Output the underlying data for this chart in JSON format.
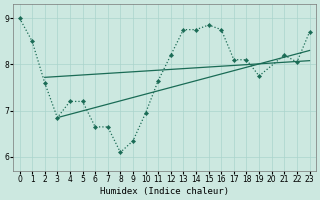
{
  "bg_color": "#cce8e0",
  "grid_color": "#aad4cc",
  "line_color": "#1a6b55",
  "xlabel": "Humidex (Indice chaleur)",
  "ylim": [
    5.7,
    9.3
  ],
  "xlim": [
    -0.5,
    23.5
  ],
  "yticks": [
    6,
    7,
    8,
    9
  ],
  "xticks": [
    0,
    1,
    2,
    3,
    4,
    5,
    6,
    7,
    8,
    9,
    10,
    11,
    12,
    13,
    14,
    15,
    16,
    17,
    18,
    19,
    20,
    21,
    22,
    23
  ],
  "main_x": [
    0,
    1,
    2,
    3,
    4,
    5,
    6,
    7,
    8,
    9,
    10,
    11,
    12,
    13,
    14,
    15,
    16,
    17,
    18,
    19,
    21,
    22,
    23
  ],
  "main_y": [
    9.0,
    8.5,
    7.6,
    6.85,
    7.2,
    7.2,
    6.65,
    6.65,
    6.1,
    6.35,
    6.95,
    7.65,
    8.2,
    8.75,
    8.75,
    8.85,
    8.75,
    8.1,
    8.1,
    7.75,
    8.2,
    8.05,
    8.7
  ],
  "trend1_x": [
    2,
    23
  ],
  "trend1_y": [
    7.72,
    8.08
  ],
  "trend2_x": [
    3,
    23
  ],
  "trend2_y": [
    6.85,
    8.3
  ]
}
